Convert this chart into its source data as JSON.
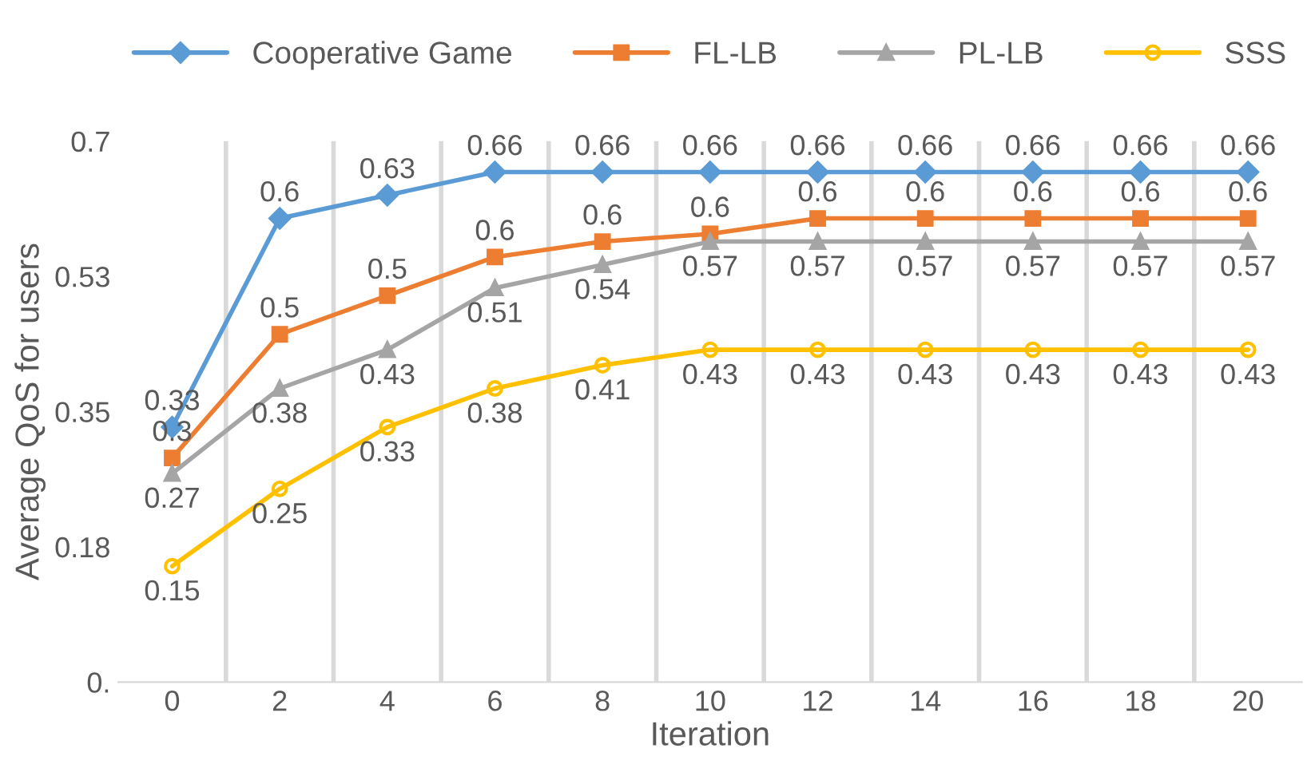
{
  "chart_data": {
    "type": "line",
    "xlabel": "Iteration",
    "ylabel": "Average QoS for users",
    "categories": [
      "0",
      "2",
      "4",
      "6",
      "8",
      "10",
      "12",
      "14",
      "16",
      "18",
      "20"
    ],
    "series": [
      {
        "name": "Cooperative Game",
        "color": "#5b9bd5",
        "marker": "diamond",
        "values": [
          0.33,
          0.6,
          0.63,
          0.66,
          0.66,
          0.66,
          0.66,
          0.66,
          0.66,
          0.66,
          0.66
        ],
        "value_labels": [
          "0.33",
          "0.6",
          "0.63",
          "0.66",
          "0.66",
          "0.66",
          "0.66",
          "0.66",
          "0.66",
          "0.66",
          "0.66"
        ]
      },
      {
        "name": "FL-LB",
        "color": "#ed7d31",
        "marker": "square",
        "values": [
          0.29,
          0.45,
          0.5,
          0.55,
          0.57,
          0.58,
          0.6,
          0.6,
          0.6,
          0.6,
          0.6
        ],
        "value_labels": [
          "0.3",
          "0.5",
          "0.5",
          "0.6",
          "0.6",
          "0.6",
          "0.6",
          "0.6",
          "0.6",
          "0.6",
          "0.6"
        ]
      },
      {
        "name": "PL-LB",
        "color": "#a5a5a5",
        "marker": "triangle",
        "values": [
          0.27,
          0.38,
          0.43,
          0.51,
          0.54,
          0.57,
          0.57,
          0.57,
          0.57,
          0.57,
          0.57
        ],
        "value_labels": [
          "0.27",
          "0.38",
          "0.43",
          "0.51",
          "0.54",
          "0.57",
          "0.57",
          "0.57",
          "0.57",
          "0.57",
          "0.57"
        ]
      },
      {
        "name": "SSS",
        "color": "#ffc000",
        "marker": "circle",
        "values": [
          0.15,
          0.25,
          0.33,
          0.38,
          0.41,
          0.43,
          0.43,
          0.43,
          0.43,
          0.43,
          0.43
        ],
        "value_labels": [
          "0.15",
          "0.25",
          "0.33",
          "0.38",
          "0.41",
          "0.43",
          "0.43",
          "0.43",
          "0.43",
          "0.43",
          "0.43"
        ]
      }
    ],
    "ylim": [
      0,
      0.7
    ],
    "yticks": [
      {
        "value": 0,
        "label": "0."
      },
      {
        "value": 0.175,
        "label": "0.18"
      },
      0.35,
      {
        "value": 0.525,
        "label": "0.53"
      },
      0.7
    ],
    "grid": "x",
    "legend": "top",
    "line_style": "solid"
  }
}
